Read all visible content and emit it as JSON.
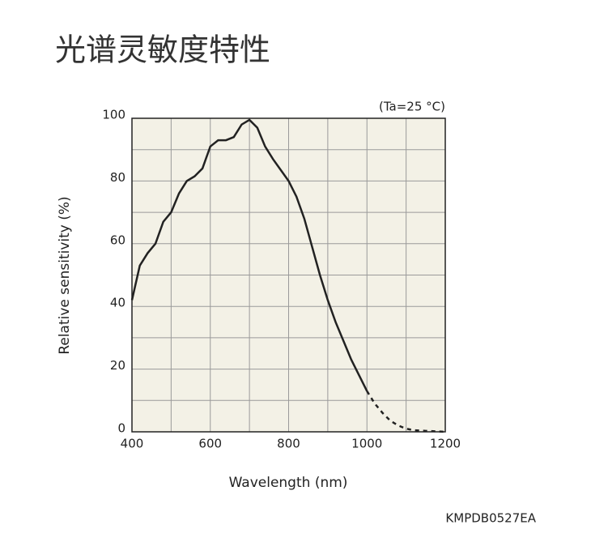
{
  "chart_data": {
    "type": "line",
    "title": "光谱灵敏度特性",
    "annotation": "(Ta=25 °C)",
    "x_label": "Wavelength (nm)",
    "y_label": "Relative sensitivity (%)",
    "note": "KMPDB0527EA",
    "xlim": [
      400,
      1200
    ],
    "xticks": [
      400,
      600,
      800,
      1000,
      1200
    ],
    "ylim": [
      0,
      100
    ],
    "yticks": [
      0,
      20,
      40,
      60,
      80,
      100
    ],
    "grid": true,
    "plot_background": "#f3f1e6",
    "grid_color": "#9a9a9a",
    "series": [
      {
        "color": "#222222",
        "line_style": "solid",
        "x": [
          400,
          420,
          440,
          460,
          480,
          500,
          520,
          540,
          560,
          580,
          600,
          620,
          640,
          660,
          680,
          700,
          720,
          740,
          760,
          780,
          800,
          820,
          840,
          860,
          880,
          900,
          920,
          940,
          960,
          980,
          1000
        ],
        "values": [
          42,
          53,
          57,
          60,
          67,
          70,
          76,
          80,
          81.5,
          84,
          91,
          93,
          93,
          94,
          98,
          99.5,
          97,
          91,
          87,
          83.5,
          80,
          75,
          68,
          59,
          50,
          42,
          35,
          29,
          23,
          18,
          13
        ]
      },
      {
        "color": "#222222",
        "line_style": "dashed",
        "x": [
          1000,
          1020,
          1040,
          1060,
          1080,
          1100,
          1120,
          1150,
          1200
        ],
        "values": [
          13,
          9,
          6,
          3.5,
          2,
          1,
          0.5,
          0.3,
          0
        ]
      }
    ]
  }
}
